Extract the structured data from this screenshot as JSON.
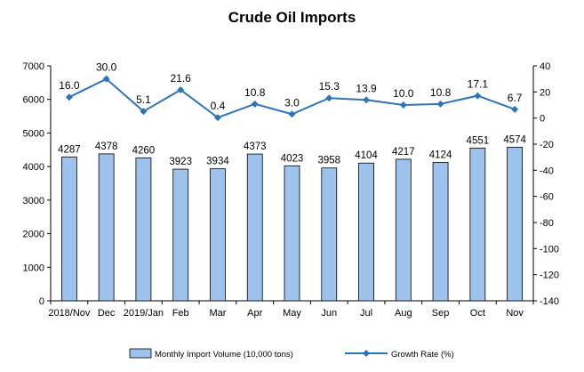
{
  "chart_data": {
    "type": "bar",
    "title": "Crude Oil Imports",
    "categories": [
      "2018/Nov",
      "Dec",
      "2019/Jan",
      "Feb",
      "Mar",
      "Apr",
      "May",
      "Jun",
      "Jul",
      "Aug",
      "Sep",
      "Oct",
      "Nov"
    ],
    "series": [
      {
        "name": "Monthly Import Volume (10,000 tons)",
        "type": "bar",
        "axis": "left",
        "color": "#9dc3ec",
        "values": [
          4287,
          4378,
          4260,
          3923,
          3934,
          4373,
          4023,
          3958,
          4104,
          4217,
          4124,
          4551,
          4574
        ]
      },
      {
        "name": "Growth Rate (%)",
        "type": "line",
        "axis": "right",
        "color": "#2e75b6",
        "values": [
          16.0,
          30.0,
          5.1,
          21.6,
          0.4,
          10.8,
          3.0,
          15.3,
          13.9,
          10.0,
          10.8,
          17.1,
          6.7
        ],
        "labels": [
          "16.0",
          "30.0",
          "5.1",
          "21.6",
          "0.4",
          "10.8",
          "3.0",
          "15.3",
          "13.9",
          "10.0",
          "10.8",
          "17.1",
          "6.7"
        ]
      }
    ],
    "y_left": {
      "min": 0,
      "max": 7000,
      "ticks": [
        0,
        1000,
        2000,
        3000,
        4000,
        5000,
        6000,
        7000
      ]
    },
    "y_right": {
      "min": -140,
      "max": 40,
      "ticks": [
        -140,
        -120,
        -100,
        -80,
        -60,
        -40,
        -20,
        0,
        20,
        40
      ]
    },
    "grid": false,
    "legend": "bottom"
  }
}
